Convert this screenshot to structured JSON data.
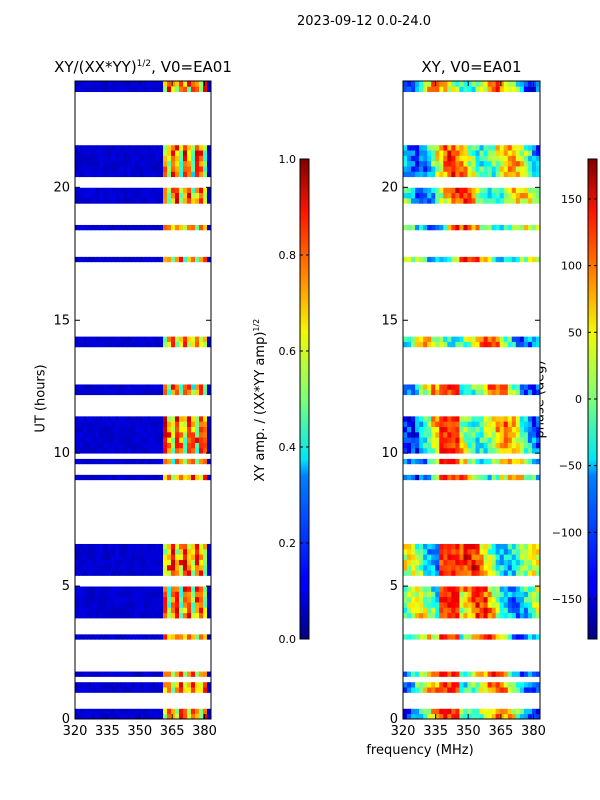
{
  "suptitle": "2023-09-12 0.0-24.0",
  "chart_data": [
    {
      "type": "heatmap",
      "title_main": "XY/(XX*YY)",
      "title_exp": "1/2",
      "title_tail": ", V0=EA01",
      "ylabel": "UT (hours)",
      "x_ticks": [
        "320",
        "335",
        "350",
        "365",
        "380"
      ],
      "x_tick_values": [
        320,
        335,
        350,
        365,
        380
      ],
      "y_ticks": [
        "0",
        "5",
        "10",
        "15",
        "20"
      ],
      "y_tick_values": [
        0,
        5,
        10,
        15,
        20
      ],
      "xlim": [
        320,
        383
      ],
      "ylim": [
        0,
        24
      ],
      "colorbar": {
        "label_main": "XY amp. / (XX*YY amp)",
        "label_exp": "1/2",
        "ticks": [
          "0.0",
          "0.2",
          "0.4",
          "0.6",
          "0.8",
          "1.0"
        ],
        "tick_values": [
          0.0,
          0.2,
          0.4,
          0.6,
          0.8,
          1.0
        ],
        "range": [
          0.0,
          1.0
        ]
      }
    },
    {
      "type": "heatmap",
      "title_main": "XY, V0=EA01",
      "xlabel": "frequency (MHz)",
      "x_ticks": [
        "320",
        "335",
        "350",
        "365",
        "380"
      ],
      "x_tick_values": [
        320,
        335,
        350,
        365,
        380
      ],
      "y_ticks": [
        "0",
        "5",
        "10",
        "15",
        "20"
      ],
      "y_tick_values": [
        0,
        5,
        10,
        15,
        20
      ],
      "xlim": [
        320,
        383
      ],
      "ylim": [
        0,
        24
      ],
      "colorbar": {
        "label_main": "phase (deg)",
        "ticks": [
          "−150",
          "−100",
          "−50",
          "0",
          "50",
          "100",
          "150"
        ],
        "tick_values": [
          -150,
          -100,
          -50,
          0,
          50,
          100,
          150
        ],
        "range": [
          -180,
          180
        ]
      }
    }
  ],
  "flagged_ut_hours": [
    0.55,
    0.9,
    1.5,
    1.9,
    2.2,
    2.6,
    2.9,
    3.3,
    3.55,
    5.2,
    5.25,
    6.8,
    7.1,
    7.45,
    7.7,
    8.0,
    8.2,
    8.55,
    8.9,
    9.35,
    9.9,
    11.65,
    12.0,
    12.85,
    13.1,
    13.35,
    13.7,
    13.85,
    14.6,
    14.9,
    15.25,
    15.65,
    15.95,
    16.35,
    16.8,
    17.1,
    17.55,
    17.75,
    18.25,
    18.8,
    19.25,
    20.2,
    20.3,
    21.7,
    22.0,
    22.45,
    22.7,
    22.9,
    23.05,
    23.25,
    23.45
  ]
}
